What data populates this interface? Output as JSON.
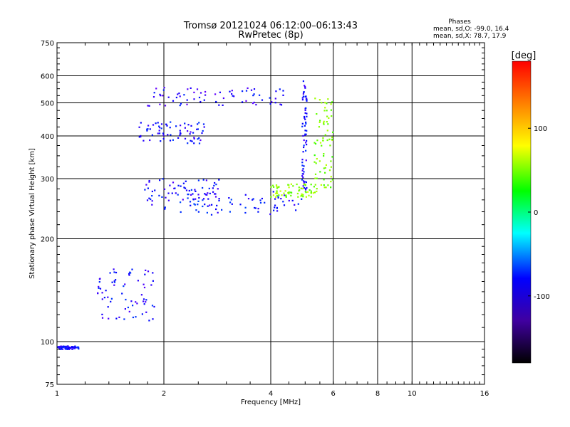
{
  "chart_data": {
    "type": "scatter",
    "title": "Tromsø 20121024 06:12:00–06:13:43",
    "subtitle": "RwPretec (8p)",
    "xlabel": "Frequency [MHz]",
    "ylabel": "Stationary phase Virtual Height [km]",
    "x_scale": "log",
    "y_scale": "log",
    "xlim": [
      1,
      16
    ],
    "ylim": [
      75,
      750
    ],
    "x_ticks": [
      1,
      2,
      4,
      6,
      8,
      10,
      16
    ],
    "y_ticks": [
      75,
      100,
      200,
      300,
      400,
      500,
      600,
      750
    ],
    "grid": true,
    "stats": {
      "heading": "Phases",
      "line_o": "mean, sd,O:  -99.0, 16.4",
      "line_x": "mean, sd,X:   78.7, 17.9"
    },
    "colorbar": {
      "label": "[deg]",
      "range": [
        -180,
        180
      ],
      "ticks": [
        100,
        0,
        -100
      ],
      "colors": [
        "#ff0000",
        "#ff8000",
        "#ffff00",
        "#00ff00",
        "#00ffff",
        "#0000ff",
        "#4000a0",
        "#000000"
      ]
    },
    "series": [
      {
        "traces": [
          {
            "x_range": [
              2.0,
              4.9
            ],
            "y_range": [
              235,
              275
            ],
            "phase": -95
          },
          {
            "x_range": [
              4.9,
              5.05
            ],
            "y_range": [
              275,
              600
            ],
            "phase": -100
          },
          {
            "x_range": [
              1.7,
              2.6
            ],
            "y_range": [
              380,
              440
            ],
            "phase": -100
          },
          {
            "x_range": [
              1.8,
              4.6
            ],
            "y_range": [
              490,
              560
            ],
            "phase": -105
          },
          {
            "x_range": [
              1.75,
              2.9
            ],
            "y_range": [
              250,
              300
            ],
            "phase": -100
          },
          {
            "x_range": [
              1.3,
              1.9
            ],
            "y_range": [
              115,
              165
            ],
            "phase": -100
          },
          {
            "x_range": [
              1.0,
              1.15
            ],
            "y_range": [
              95,
              97
            ],
            "phase": -100
          }
        ]
      },
      {
        "traces": [
          {
            "x_range": [
              4.0,
              5.4
            ],
            "y_range": [
              265,
              290
            ],
            "phase": 80
          },
          {
            "x_range": [
              5.3,
              6.0
            ],
            "y_range": [
              280,
              520
            ],
            "phase": 75
          }
        ]
      }
    ]
  }
}
